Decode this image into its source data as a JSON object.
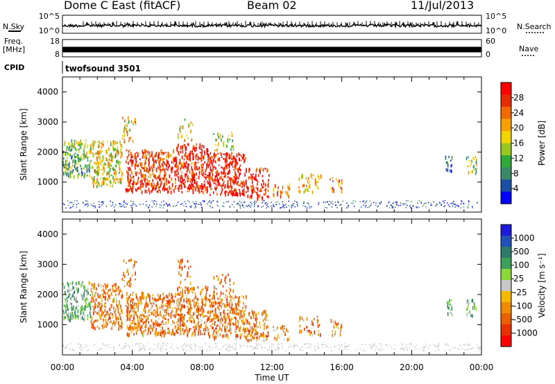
{
  "header": {
    "station": "Dome C East (fitACF)",
    "beam": "Beam 02",
    "date": "11/Jul/2013"
  },
  "side_labels": {
    "nsky": "N.Sky",
    "nsearch": "N.Search",
    "freq": "Freq.",
    "freq_unit": "[MHz]",
    "nave": "Nave",
    "cpid": "CPID"
  },
  "cpid_text": "twofsound 3501",
  "colors": {
    "power": [
      "#0000ff",
      "#1a4fa3",
      "#3a8a6a",
      "#2faa3a",
      "#98c81e",
      "#f2d400",
      "#f7a000",
      "#f06a00",
      "#e82a00",
      "#ff0000"
    ],
    "velocity": [
      "#1a1ad8",
      "#2050b8",
      "#2e7a6a",
      "#3aa05a",
      "#8bd83a",
      "#c8c8c8",
      "#f7b800",
      "#f08a00",
      "#e86000",
      "#e83000",
      "#ff0000"
    ]
  },
  "chart_data": [
    {
      "type": "line",
      "panel": "noise",
      "left_ticks": [
        "10^5",
        "10^0"
      ],
      "right_ticks": [
        "10^5",
        "10^0"
      ]
    },
    {
      "type": "line",
      "panel": "frequency",
      "left_ticks": [
        "18",
        "8"
      ],
      "right_ticks": [
        "60",
        "0"
      ]
    },
    {
      "type": "heatmap",
      "panel": "power",
      "xlabel": "",
      "ylabel": "Slant Range [km]",
      "xlim": [
        "00:00",
        "24:00"
      ],
      "ylim": [
        0,
        4500
      ],
      "y_ticks": [
        1000,
        2000,
        3000,
        4000
      ],
      "colorbar_label": "Power [dB]",
      "colorbar_ticks": [
        "4",
        "8",
        "12",
        "16",
        "20",
        "24",
        "28"
      ]
    },
    {
      "type": "heatmap",
      "panel": "velocity",
      "xlabel": "Time UT",
      "ylabel": "Slant Range [km]",
      "xlim": [
        "00:00",
        "24:00"
      ],
      "ylim": [
        0,
        4500
      ],
      "y_ticks": [
        1000,
        2000,
        3000,
        4000
      ],
      "x_ticks": [
        "00:00",
        "04:00",
        "08:00",
        "12:00",
        "16:00",
        "20:00",
        "00:00"
      ],
      "colorbar_label": "Velocity [m s⁻¹]",
      "colorbar_ticks": [
        "1000",
        "500",
        "100",
        "25",
        "-25",
        "-100",
        "-500",
        "-1000"
      ]
    }
  ]
}
